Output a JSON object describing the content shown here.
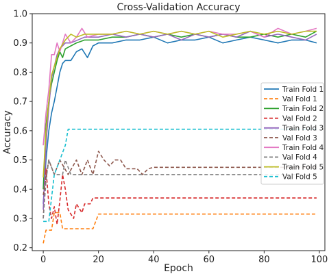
{
  "chart_data": {
    "type": "line",
    "title": "Cross-Validation Accuracy",
    "xlabel": "Epoch",
    "ylabel": "Accuracy",
    "xlim": [
      -4,
      102
    ],
    "ylim": [
      0.19,
      1.0
    ],
    "xticks": [
      0,
      20,
      40,
      60,
      80,
      100
    ],
    "yticks": [
      0.2,
      0.3,
      0.4,
      0.5,
      0.6,
      0.7,
      0.8,
      0.9,
      1.0
    ],
    "grid": false,
    "legend_position": "right",
    "series": [
      {
        "name": "Train Fold 1",
        "color": "#1f77b4",
        "style": "solid",
        "points": [
          [
            0,
            0.35
          ],
          [
            1,
            0.5
          ],
          [
            2,
            0.6
          ],
          [
            3,
            0.66
          ],
          [
            4,
            0.7
          ],
          [
            5,
            0.75
          ],
          [
            6,
            0.8
          ],
          [
            7,
            0.83
          ],
          [
            8,
            0.84
          ],
          [
            10,
            0.84
          ],
          [
            12,
            0.87
          ],
          [
            14,
            0.88
          ],
          [
            16,
            0.85
          ],
          [
            18,
            0.89
          ],
          [
            20,
            0.9
          ],
          [
            25,
            0.9
          ],
          [
            30,
            0.91
          ],
          [
            35,
            0.91
          ],
          [
            40,
            0.92
          ],
          [
            45,
            0.9
          ],
          [
            50,
            0.91
          ],
          [
            55,
            0.91
          ],
          [
            60,
            0.92
          ],
          [
            65,
            0.9
          ],
          [
            70,
            0.91
          ],
          [
            75,
            0.92
          ],
          [
            80,
            0.91
          ],
          [
            85,
            0.9
          ],
          [
            90,
            0.91
          ],
          [
            95,
            0.91
          ],
          [
            99,
            0.9
          ]
        ]
      },
      {
        "name": "Val Fold 1",
        "color": "#ff7f0e",
        "style": "dashed",
        "points": [
          [
            0,
            0.215
          ],
          [
            1,
            0.26
          ],
          [
            3,
            0.26
          ],
          [
            4,
            0.32
          ],
          [
            6,
            0.32
          ],
          [
            7,
            0.265
          ],
          [
            18,
            0.265
          ],
          [
            20,
            0.315
          ],
          [
            99,
            0.315
          ]
        ]
      },
      {
        "name": "Train Fold 2",
        "color": "#2ca02c",
        "style": "solid",
        "points": [
          [
            0,
            0.4
          ],
          [
            1,
            0.62
          ],
          [
            2,
            0.7
          ],
          [
            3,
            0.76
          ],
          [
            4,
            0.8
          ],
          [
            5,
            0.84
          ],
          [
            6,
            0.87
          ],
          [
            7,
            0.85
          ],
          [
            8,
            0.88
          ],
          [
            10,
            0.89
          ],
          [
            12,
            0.9
          ],
          [
            15,
            0.91
          ],
          [
            20,
            0.91
          ],
          [
            25,
            0.92
          ],
          [
            30,
            0.92
          ],
          [
            35,
            0.93
          ],
          [
            40,
            0.92
          ],
          [
            45,
            0.93
          ],
          [
            50,
            0.92
          ],
          [
            55,
            0.93
          ],
          [
            60,
            0.92
          ],
          [
            65,
            0.93
          ],
          [
            70,
            0.92
          ],
          [
            75,
            0.92
          ],
          [
            80,
            0.93
          ],
          [
            85,
            0.92
          ],
          [
            90,
            0.93
          ],
          [
            95,
            0.92
          ],
          [
            99,
            0.94
          ]
        ]
      },
      {
        "name": "Val Fold 2",
        "color": "#d62728",
        "style": "dashed",
        "points": [
          [
            0,
            0.3
          ],
          [
            1,
            0.47
          ],
          [
            2,
            0.35
          ],
          [
            3,
            0.3
          ],
          [
            4,
            0.34
          ],
          [
            5,
            0.28
          ],
          [
            6,
            0.36
          ],
          [
            7,
            0.45
          ],
          [
            8,
            0.4
          ],
          [
            9,
            0.33
          ],
          [
            11,
            0.3
          ],
          [
            12,
            0.35
          ],
          [
            14,
            0.32
          ],
          [
            15,
            0.35
          ],
          [
            17,
            0.35
          ],
          [
            18,
            0.37
          ],
          [
            99,
            0.37
          ]
        ]
      },
      {
        "name": "Train Fold 3",
        "color": "#9467bd",
        "style": "solid",
        "points": [
          [
            0,
            0.33
          ],
          [
            1,
            0.55
          ],
          [
            2,
            0.68
          ],
          [
            3,
            0.78
          ],
          [
            4,
            0.82
          ],
          [
            5,
            0.86
          ],
          [
            6,
            0.88
          ],
          [
            8,
            0.9
          ],
          [
            10,
            0.9
          ],
          [
            15,
            0.92
          ],
          [
            20,
            0.92
          ],
          [
            25,
            0.93
          ],
          [
            30,
            0.92
          ],
          [
            35,
            0.93
          ],
          [
            40,
            0.92
          ],
          [
            45,
            0.93
          ],
          [
            50,
            0.91
          ],
          [
            55,
            0.93
          ],
          [
            60,
            0.92
          ],
          [
            65,
            0.93
          ],
          [
            70,
            0.92
          ],
          [
            75,
            0.94
          ],
          [
            80,
            0.92
          ],
          [
            85,
            0.93
          ],
          [
            90,
            0.92
          ],
          [
            95,
            0.91
          ],
          [
            99,
            0.93
          ]
        ]
      },
      {
        "name": "Val Fold 3",
        "color": "#8c564b",
        "style": "dashed",
        "points": [
          [
            0,
            0.38
          ],
          [
            2,
            0.5
          ],
          [
            4,
            0.45
          ],
          [
            6,
            0.5
          ],
          [
            9,
            0.45
          ],
          [
            12,
            0.5
          ],
          [
            14,
            0.45
          ],
          [
            16,
            0.5
          ],
          [
            18,
            0.45
          ],
          [
            20,
            0.53
          ],
          [
            22,
            0.5
          ],
          [
            24,
            0.48
          ],
          [
            26,
            0.5
          ],
          [
            28,
            0.5
          ],
          [
            30,
            0.47
          ],
          [
            34,
            0.47
          ],
          [
            36,
            0.45
          ],
          [
            38,
            0.47
          ],
          [
            40,
            0.475
          ],
          [
            99,
            0.475
          ]
        ]
      },
      {
        "name": "Train Fold 4",
        "color": "#e377c2",
        "style": "solid",
        "points": [
          [
            0,
            0.55
          ],
          [
            1,
            0.66
          ],
          [
            2,
            0.74
          ],
          [
            3,
            0.86
          ],
          [
            4,
            0.86
          ],
          [
            5,
            0.9
          ],
          [
            6,
            0.87
          ],
          [
            8,
            0.93
          ],
          [
            10,
            0.9
          ],
          [
            12,
            0.92
          ],
          [
            14,
            0.95
          ],
          [
            16,
            0.92
          ],
          [
            20,
            0.93
          ],
          [
            25,
            0.93
          ],
          [
            30,
            0.94
          ],
          [
            35,
            0.93
          ],
          [
            40,
            0.94
          ],
          [
            45,
            0.93
          ],
          [
            50,
            0.94
          ],
          [
            55,
            0.93
          ],
          [
            60,
            0.94
          ],
          [
            65,
            0.93
          ],
          [
            70,
            0.93
          ],
          [
            75,
            0.94
          ],
          [
            80,
            0.92
          ],
          [
            85,
            0.95
          ],
          [
            90,
            0.93
          ],
          [
            95,
            0.94
          ],
          [
            99,
            0.95
          ]
        ]
      },
      {
        "name": "Val Fold 4",
        "color": "#7f7f7f",
        "style": "dashed",
        "points": [
          [
            0,
            0.3
          ],
          [
            1,
            0.43
          ],
          [
            2,
            0.5
          ],
          [
            4,
            0.45
          ],
          [
            7,
            0.45
          ],
          [
            8,
            0.5
          ],
          [
            10,
            0.45
          ],
          [
            99,
            0.45
          ]
        ]
      },
      {
        "name": "Train Fold 5",
        "color": "#bcbd22",
        "style": "solid",
        "points": [
          [
            0,
            0.44
          ],
          [
            1,
            0.6
          ],
          [
            2,
            0.7
          ],
          [
            3,
            0.79
          ],
          [
            4,
            0.82
          ],
          [
            5,
            0.85
          ],
          [
            6,
            0.88
          ],
          [
            8,
            0.91
          ],
          [
            10,
            0.93
          ],
          [
            12,
            0.92
          ],
          [
            15,
            0.93
          ],
          [
            20,
            0.93
          ],
          [
            25,
            0.93
          ],
          [
            30,
            0.94
          ],
          [
            35,
            0.93
          ],
          [
            40,
            0.94
          ],
          [
            45,
            0.93
          ],
          [
            50,
            0.94
          ],
          [
            55,
            0.93
          ],
          [
            60,
            0.94
          ],
          [
            65,
            0.92
          ],
          [
            70,
            0.93
          ],
          [
            75,
            0.94
          ],
          [
            80,
            0.93
          ],
          [
            85,
            0.94
          ],
          [
            90,
            0.93
          ],
          [
            95,
            0.94
          ],
          [
            99,
            0.94
          ]
        ]
      },
      {
        "name": "Val Fold 5",
        "color": "#17becf",
        "style": "dashed",
        "points": [
          [
            0,
            0.29
          ],
          [
            2,
            0.29
          ],
          [
            3,
            0.37
          ],
          [
            4,
            0.45
          ],
          [
            6,
            0.5
          ],
          [
            8,
            0.55
          ],
          [
            9,
            0.605
          ],
          [
            99,
            0.605
          ]
        ]
      }
    ]
  }
}
